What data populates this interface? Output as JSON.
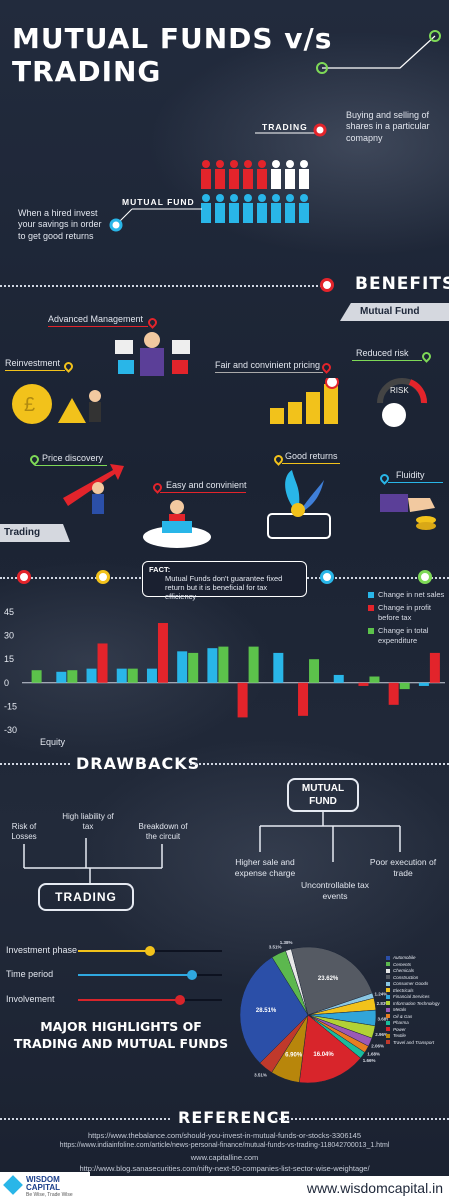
{
  "header": {
    "title": "MUTUAL FUNDS v/s TRADING"
  },
  "intro": {
    "trading_label": "TRADING",
    "trading_desc": "Buying and selling of shares in a particular comapny",
    "mutual_fund_label": "MUTUAL FUND",
    "mutual_fund_desc": "When a hired invest your savings in order to get good returns"
  },
  "benefits": {
    "title": "BENEFITS",
    "mutual_fund_tag": "Mutual Fund",
    "trading_tag": "Trading",
    "items": [
      {
        "label": "Advanced Management"
      },
      {
        "label": "Reinvestment"
      },
      {
        "label": "Fair and convinient pricing"
      },
      {
        "label": "Reduced risk"
      },
      {
        "label": "Price discovery"
      },
      {
        "label": "Easy and convinient"
      },
      {
        "label": "Good returns"
      },
      {
        "label": "Fluidity"
      }
    ],
    "risk_word": "RISK"
  },
  "fact": {
    "heading": "FACT:",
    "text": "Mutual Funds don't guarantee fixed return but it is beneficial for tax efficiency"
  },
  "chart_data": {
    "type": "bar",
    "xlabel": "Equity",
    "yticks": [
      "45",
      "30",
      "15",
      "0",
      "-15",
      "-30"
    ],
    "ylim": [
      -30,
      45
    ],
    "legend_position": "top-right",
    "series": [
      {
        "name": "Change in net sales",
        "color": "#29b6e8",
        "values": [
          0,
          7,
          9,
          9,
          9,
          20,
          22,
          0,
          19,
          0,
          5,
          0,
          0,
          -2
        ]
      },
      {
        "name": "Change in profit before tax",
        "color": "#e3242b",
        "values": [
          0,
          0,
          25,
          0,
          38,
          0,
          0,
          -22,
          0,
          -21,
          0,
          -2,
          -14,
          19
        ]
      },
      {
        "name": "Change in total expenditure",
        "color": "#5cc24b",
        "values": [
          8,
          8,
          0,
          9,
          0,
          19,
          23,
          23,
          0,
          15,
          0,
          4,
          -4,
          0
        ]
      }
    ]
  },
  "drawbacks": {
    "title": "DRAWBACKS",
    "mutual_fund_box": "MUTUAL FUND",
    "trading_box": "TRADING",
    "trading_items": [
      "Risk of Losses",
      "High liability of tax",
      "Breakdown of the circuit"
    ],
    "mf_items": [
      "Higher sale and expense charge",
      "Uncontrollable tax events",
      "Poor execution of trade"
    ]
  },
  "sliders": [
    {
      "label": "Investment phase",
      "color": "#f2c21b",
      "level": 0.5
    },
    {
      "label": "Time period",
      "color": "#2fa8e0",
      "level": 0.79
    },
    {
      "label": "Involvement",
      "color": "#d8252b",
      "level": 0.71
    }
  ],
  "highlights": {
    "title_line1": "MAJOR HIGHLIGHTS OF",
    "title_line2": "TRADING AND MUTUAL FUNDS"
  },
  "pie": {
    "slices": [
      {
        "label": "28.51%",
        "value": 28.51,
        "color": "#2b4fa8"
      },
      {
        "label": "3.51%",
        "value": 3.51,
        "color": "#5cb84e"
      },
      {
        "label": "1.38%",
        "value": 1.38,
        "color": "#e8e8e8"
      },
      {
        "label": "23.62%",
        "value": 23.62,
        "color": "#555a63"
      },
      {
        "label": "1.24%",
        "value": 1.24,
        "color": "#8bc7e3"
      },
      {
        "label": "2.83%",
        "value": 2.83,
        "color": "#f2c21b"
      },
      {
        "label": "3.68%",
        "value": 3.68,
        "color": "#31a5d8"
      },
      {
        "label": "2.96%",
        "value": 2.96,
        "color": "#b2d235"
      },
      {
        "label": "2.06%",
        "value": 2.06,
        "color": "#9b59b6"
      },
      {
        "label": "1.68%",
        "value": 1.68,
        "color": "#e67e22"
      },
      {
        "label": "1.66%",
        "value": 1.66,
        "color": "#1abc9c"
      },
      {
        "label": "16.04%",
        "value": 16.04,
        "color": "#d8252b"
      },
      {
        "label": "6.90%",
        "value": 6.9,
        "color": "#b8860b"
      },
      {
        "label": "3.51%",
        "value": 3.51,
        "color": "#c0392b"
      }
    ],
    "legend": [
      "Automobile",
      "Cements",
      "Chemicals",
      "Construction",
      "Consumer Goods",
      "Electricals",
      "Financial Services",
      "Information Technology",
      "Metals",
      "Oil & Gas",
      "Pharma",
      "Power",
      "Textile",
      "Travel and Transport"
    ]
  },
  "reference": {
    "title": "REFERENCE",
    "links": [
      "https://www.thebalance.com/should-you-invest-in-mutual-funds-or-stocks-3306145",
      "https://www.indiainfoline.com/article/news-personal-finance/mutual-funds-vs-trading-118042700013_1.html",
      "www.capitalline.com",
      "http://www.blog.sanasecurities.com/nifty-next-50-companies-list-sector-wise-weightage/"
    ]
  },
  "footer": {
    "logo_name": "WISDOM CAPITAL",
    "logo_tagline": "Be Wise, Trade Wise",
    "website": "www.wisdomcapital.in"
  }
}
